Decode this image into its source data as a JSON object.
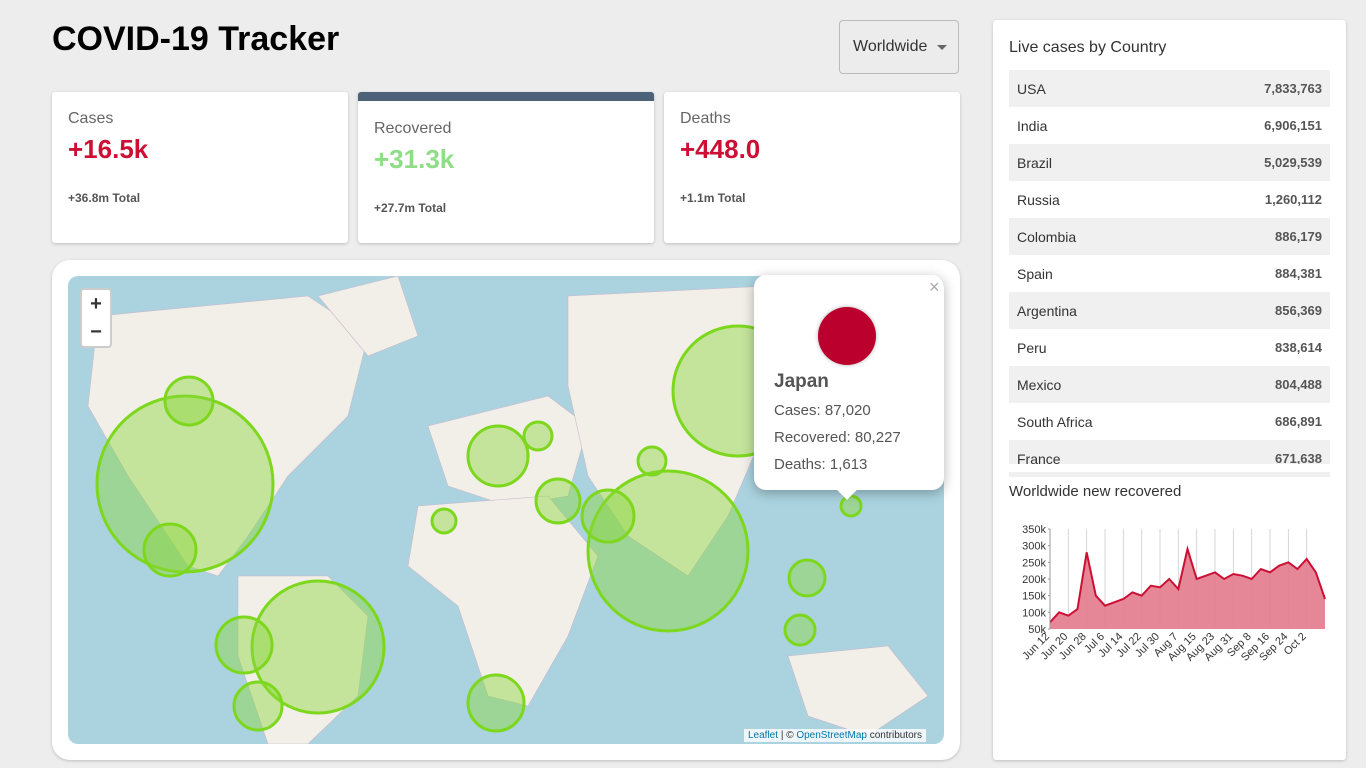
{
  "header": {
    "title": "COVID-19 Tracker",
    "dropdown": "Worldwide"
  },
  "stats": [
    {
      "label": "Cases",
      "today": "+16.5k",
      "total": "+36.8m Total"
    },
    {
      "label": "Recovered",
      "today": "+31.3k",
      "total": "+27.7m Total"
    },
    {
      "label": "Deaths",
      "today": "+448.0",
      "total": "+1.1m Total"
    }
  ],
  "map": {
    "zoom_in": "+",
    "zoom_out": "−",
    "close": "×",
    "popup": {
      "name": "Japan",
      "lines": [
        "Cases: 87,020",
        "Recovered: 80,227",
        "Deaths: 1,613"
      ]
    },
    "attribution": {
      "leaflet": "Leaflet",
      "separator": "| ©",
      "osm": "OpenStreetMap",
      "suffix": "contributors"
    }
  },
  "table": {
    "title": "Live cases by Country",
    "rows": [
      [
        "USA",
        "7,833,763"
      ],
      [
        "India",
        "6,906,151"
      ],
      [
        "Brazil",
        "5,029,539"
      ],
      [
        "Russia",
        "1,260,112"
      ],
      [
        "Colombia",
        "886,179"
      ],
      [
        "Spain",
        "884,381"
      ],
      [
        "Argentina",
        "856,369"
      ],
      [
        "Peru",
        "838,614"
      ],
      [
        "Mexico",
        "804,488"
      ],
      [
        "South Africa",
        "686,891"
      ],
      [
        "France",
        "671,638"
      ]
    ]
  },
  "chart": {
    "type": "area",
    "title": "Worldwide new recovered",
    "color": "#cc1034",
    "fill": "#e27a8c",
    "categories": [
      "Jun 12",
      null,
      "Jun 20",
      null,
      "Jun 28",
      null,
      "Jul 6",
      null,
      "Jul 14",
      null,
      "Jul 22",
      null,
      "Jul 30",
      null,
      "Aug 7",
      null,
      "Aug 15",
      null,
      "Aug 23",
      null,
      "Aug 31",
      null,
      "Sep 8",
      null,
      "Sep 16",
      null,
      "Sep 24",
      null,
      "Oct 2",
      null,
      null
    ],
    "values": [
      70000,
      100000,
      90000,
      110000,
      280000,
      150000,
      120000,
      130000,
      140000,
      160000,
      150000,
      180000,
      175000,
      200000,
      170000,
      290000,
      200000,
      210000,
      220000,
      200000,
      215000,
      210000,
      200000,
      230000,
      220000,
      240000,
      250000,
      230000,
      260000,
      220000,
      140000
    ],
    "ylim": [
      50000,
      350000
    ],
    "yticks": [
      {
        "value": 50000,
        "label": "50k"
      },
      {
        "value": 100000,
        "label": "100k"
      },
      {
        "value": 150000,
        "label": "150k"
      },
      {
        "value": 200000,
        "label": "200k"
      },
      {
        "value": 250000,
        "label": "250k"
      },
      {
        "value": 300000,
        "label": "300k"
      },
      {
        "value": 350000,
        "label": "350k"
      }
    ],
    "grid": true
  }
}
